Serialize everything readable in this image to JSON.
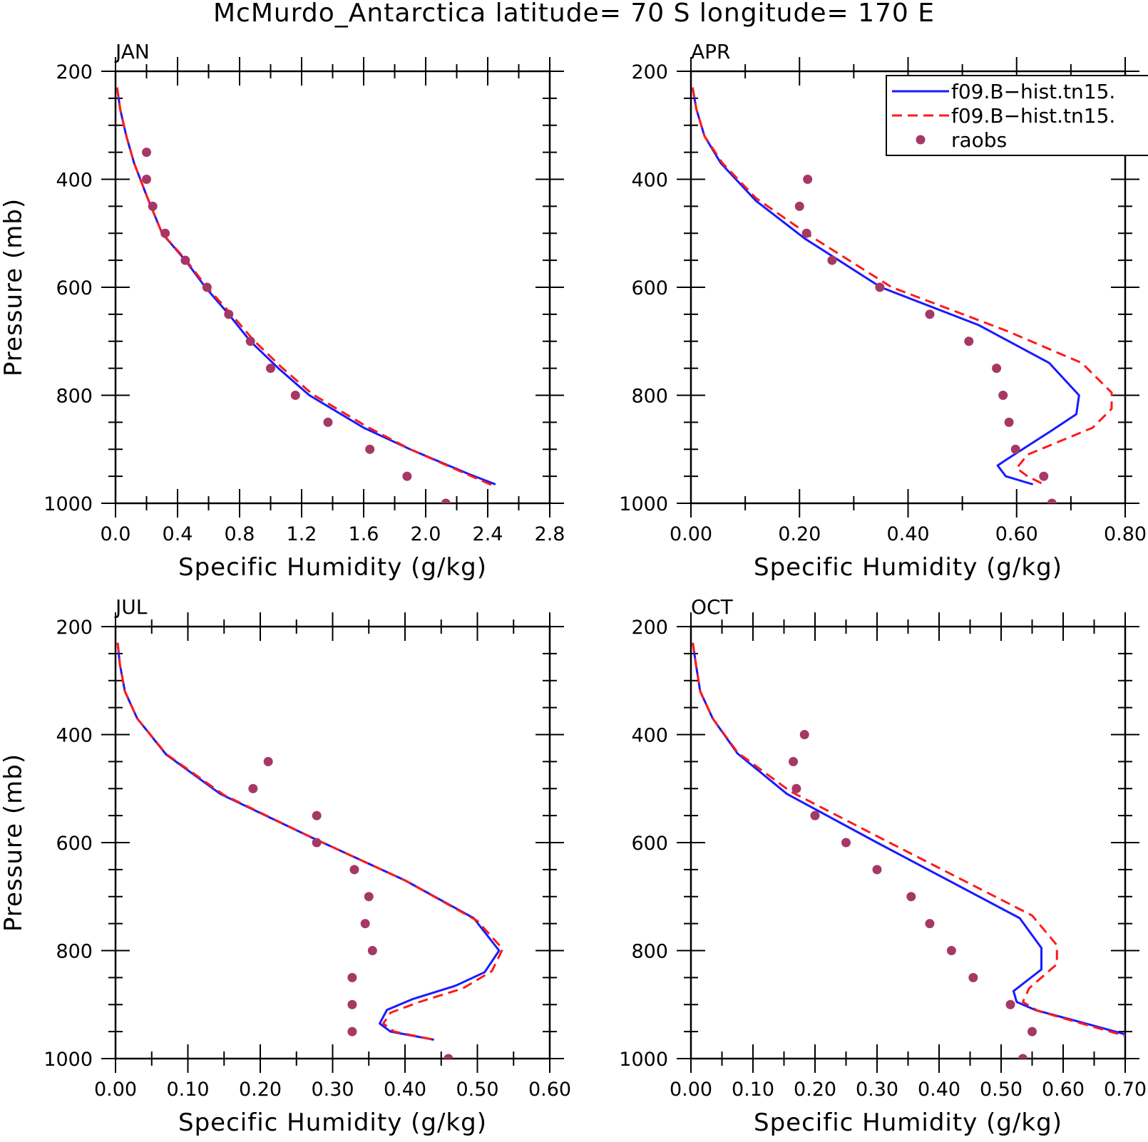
{
  "title": "McMurdo_Antarctica  latitude= 70 S longitude= 170 E",
  "legend": [
    {
      "label": "f09.B−hist.tn15.",
      "color": "#1a1aff",
      "style": "solid"
    },
    {
      "label": "f09.B−hist.tn15.",
      "color": "#ff1a1a",
      "style": "dashed"
    },
    {
      "label": "raobs",
      "color": "#a63866",
      "style": "dot"
    }
  ],
  "chart_data": [
    {
      "type": "line",
      "panel": "JAN",
      "xlabel": "Specific Humidity (g/kg)",
      "ylabel": "Pressure (mb)",
      "xlim": [
        0,
        2.8
      ],
      "ylim": [
        1000,
        200
      ],
      "y_reversed": true,
      "xticks": [
        "0.0",
        "0.4",
        "0.8",
        "1.2",
        "1.6",
        "2.0",
        "2.4",
        "2.8"
      ],
      "yticks": [
        "200",
        "400",
        "600",
        "800",
        "1000"
      ],
      "series": [
        {
          "color": "#1a1aff",
          "style": "solid",
          "points": [
            [
              0.01,
              230
            ],
            [
              0.03,
              270
            ],
            [
              0.07,
              320
            ],
            [
              0.12,
              370
            ],
            [
              0.2,
              430
            ],
            [
              0.3,
              500
            ],
            [
              0.45,
              550
            ],
            [
              0.58,
              600
            ],
            [
              0.73,
              650
            ],
            [
              0.87,
              700
            ],
            [
              1.05,
              750
            ],
            [
              1.25,
              800
            ],
            [
              1.6,
              860
            ],
            [
              1.9,
              900
            ],
            [
              2.27,
              945
            ],
            [
              2.45,
              965
            ]
          ]
        },
        {
          "color": "#ff1a1a",
          "style": "dashed",
          "points": [
            [
              0.01,
              230
            ],
            [
              0.03,
              270
            ],
            [
              0.07,
              320
            ],
            [
              0.12,
              370
            ],
            [
              0.2,
              430
            ],
            [
              0.3,
              500
            ],
            [
              0.45,
              548
            ],
            [
              0.59,
              600
            ],
            [
              0.74,
              648
            ],
            [
              0.89,
              698
            ],
            [
              1.07,
              748
            ],
            [
              1.27,
              798
            ],
            [
              1.62,
              858
            ],
            [
              1.9,
              900
            ],
            [
              2.28,
              948
            ],
            [
              2.44,
              968
            ]
          ]
        },
        {
          "color": "#a63866",
          "style": "dot",
          "points": [
            [
              0.2,
              350
            ],
            [
              0.2,
              400
            ],
            [
              0.24,
              450
            ],
            [
              0.32,
              500
            ],
            [
              0.45,
              550
            ],
            [
              0.59,
              600
            ],
            [
              0.73,
              650
            ],
            [
              0.87,
              700
            ],
            [
              1.0,
              750
            ],
            [
              1.16,
              800
            ],
            [
              1.37,
              850
            ],
            [
              1.64,
              900
            ],
            [
              1.88,
              950
            ],
            [
              2.13,
              1000
            ]
          ]
        }
      ]
    },
    {
      "type": "line",
      "panel": "APR",
      "xlabel": "Specific Humidity (g/kg)",
      "ylabel": "",
      "xlim": [
        0,
        0.8
      ],
      "ylim": [
        1000,
        200
      ],
      "y_reversed": true,
      "xticks": [
        "0.00",
        "0.20",
        "0.40",
        "0.60",
        "0.80"
      ],
      "yticks": [
        "200",
        "400",
        "600",
        "800",
        "1000"
      ],
      "series": [
        {
          "color": "#1a1aff",
          "style": "solid",
          "points": [
            [
              0.003,
              230
            ],
            [
              0.01,
              270
            ],
            [
              0.025,
              320
            ],
            [
              0.055,
              370
            ],
            [
              0.12,
              440
            ],
            [
              0.21,
              510
            ],
            [
              0.35,
              600
            ],
            [
              0.53,
              670
            ],
            [
              0.66,
              740
            ],
            [
              0.715,
              800
            ],
            [
              0.71,
              835
            ],
            [
              0.665,
              865
            ],
            [
              0.58,
              920
            ],
            [
              0.565,
              930
            ],
            [
              0.58,
              950
            ],
            [
              0.63,
              965
            ]
          ]
        },
        {
          "color": "#ff1a1a",
          "style": "dashed",
          "points": [
            [
              0.003,
              230
            ],
            [
              0.01,
              270
            ],
            [
              0.025,
              320
            ],
            [
              0.058,
              370
            ],
            [
              0.12,
              435
            ],
            [
              0.22,
              505
            ],
            [
              0.37,
              600
            ],
            [
              0.58,
              680
            ],
            [
              0.72,
              740
            ],
            [
              0.775,
              795
            ],
            [
              0.775,
              825
            ],
            [
              0.74,
              860
            ],
            [
              0.62,
              910
            ],
            [
              0.6,
              935
            ],
            [
              0.62,
              950
            ],
            [
              0.65,
              965
            ]
          ]
        },
        {
          "color": "#a63866",
          "style": "dot",
          "points": [
            [
              0.215,
              400
            ],
            [
              0.2,
              450
            ],
            [
              0.213,
              500
            ],
            [
              0.26,
              550
            ],
            [
              0.348,
              600
            ],
            [
              0.44,
              650
            ],
            [
              0.512,
              700
            ],
            [
              0.563,
              750
            ],
            [
              0.575,
              800
            ],
            [
              0.586,
              850
            ],
            [
              0.598,
              900
            ],
            [
              0.65,
              950
            ],
            [
              0.665,
              1000
            ]
          ]
        }
      ]
    },
    {
      "type": "line",
      "panel": "JUL",
      "xlabel": "Specific Humidity (g/kg)",
      "ylabel": "Pressure (mb)",
      "xlim": [
        0,
        0.6
      ],
      "ylim": [
        1000,
        200
      ],
      "y_reversed": true,
      "xticks": [
        "0.00",
        "0.10",
        "0.20",
        "0.30",
        "0.40",
        "0.50",
        "0.60"
      ],
      "yticks": [
        "200",
        "400",
        "600",
        "800",
        "1000"
      ],
      "series": [
        {
          "color": "#1a1aff",
          "style": "solid",
          "points": [
            [
              0.003,
              230
            ],
            [
              0.006,
              270
            ],
            [
              0.013,
              320
            ],
            [
              0.03,
              370
            ],
            [
              0.07,
              437
            ],
            [
              0.145,
              510
            ],
            [
              0.27,
              590
            ],
            [
              0.4,
              670
            ],
            [
              0.495,
              740
            ],
            [
              0.53,
              800
            ],
            [
              0.51,
              840
            ],
            [
              0.47,
              865
            ],
            [
              0.41,
              890
            ],
            [
              0.375,
              910
            ],
            [
              0.365,
              935
            ],
            [
              0.38,
              950
            ],
            [
              0.44,
              965
            ]
          ]
        },
        {
          "color": "#ff1a1a",
          "style": "dashed",
          "points": [
            [
              0.003,
              230
            ],
            [
              0.006,
              270
            ],
            [
              0.013,
              320
            ],
            [
              0.03,
              370
            ],
            [
              0.07,
              436
            ],
            [
              0.15,
              512
            ],
            [
              0.27,
              590
            ],
            [
              0.4,
              670
            ],
            [
              0.5,
              745
            ],
            [
              0.535,
              797
            ],
            [
              0.52,
              838
            ],
            [
              0.48,
              870
            ],
            [
              0.42,
              895
            ],
            [
              0.38,
              915
            ],
            [
              0.37,
              935
            ],
            [
              0.385,
              950
            ],
            [
              0.44,
              965
            ]
          ]
        },
        {
          "color": "#a63866",
          "style": "dot",
          "points": [
            [
              0.211,
              450
            ],
            [
              0.19,
              500
            ],
            [
              0.278,
              550
            ],
            [
              0.278,
              600
            ],
            [
              0.33,
              650
            ],
            [
              0.35,
              700
            ],
            [
              0.345,
              750
            ],
            [
              0.355,
              800
            ],
            [
              0.327,
              850
            ],
            [
              0.327,
              900
            ],
            [
              0.327,
              950
            ],
            [
              0.46,
              1000
            ]
          ]
        }
      ]
    },
    {
      "type": "line",
      "panel": "OCT",
      "xlabel": "Specific Humidity (g/kg)",
      "ylabel": "",
      "xlim": [
        0,
        0.7
      ],
      "ylim": [
        1000,
        200
      ],
      "y_reversed": true,
      "xticks": [
        "0.00",
        "0.10",
        "0.20",
        "0.30",
        "0.40",
        "0.50",
        "0.60",
        "0.70"
      ],
      "yticks": [
        "200",
        "400",
        "600",
        "800",
        "1000"
      ],
      "series": [
        {
          "color": "#1a1aff",
          "style": "solid",
          "points": [
            [
              0.003,
              230
            ],
            [
              0.008,
              270
            ],
            [
              0.015,
              320
            ],
            [
              0.035,
              370
            ],
            [
              0.075,
              435
            ],
            [
              0.155,
              510
            ],
            [
              0.3,
              600
            ],
            [
              0.53,
              740
            ],
            [
              0.565,
              795
            ],
            [
              0.565,
              835
            ],
            [
              0.52,
              875
            ],
            [
              0.525,
              895
            ],
            [
              0.555,
              910
            ],
            [
              0.62,
              930
            ],
            [
              0.7,
              955
            ]
          ]
        },
        {
          "color": "#ff1a1a",
          "style": "dashed",
          "points": [
            [
              0.003,
              230
            ],
            [
              0.008,
              270
            ],
            [
              0.015,
              320
            ],
            [
              0.035,
              370
            ],
            [
              0.075,
              433
            ],
            [
              0.16,
              505
            ],
            [
              0.32,
              600
            ],
            [
              0.55,
              735
            ],
            [
              0.59,
              790
            ],
            [
              0.59,
              825
            ],
            [
              0.545,
              870
            ],
            [
              0.535,
              895
            ],
            [
              0.56,
              912
            ],
            [
              0.63,
              935
            ],
            [
              0.7,
              958
            ]
          ]
        },
        {
          "color": "#a63866",
          "style": "dot",
          "points": [
            [
              0.183,
              400
            ],
            [
              0.165,
              450
            ],
            [
              0.17,
              500
            ],
            [
              0.2,
              550
            ],
            [
              0.25,
              600
            ],
            [
              0.3,
              650
            ],
            [
              0.355,
              700
            ],
            [
              0.385,
              750
            ],
            [
              0.42,
              800
            ],
            [
              0.455,
              850
            ],
            [
              0.515,
              900
            ],
            [
              0.55,
              950
            ],
            [
              0.535,
              1000
            ]
          ]
        }
      ]
    }
  ]
}
